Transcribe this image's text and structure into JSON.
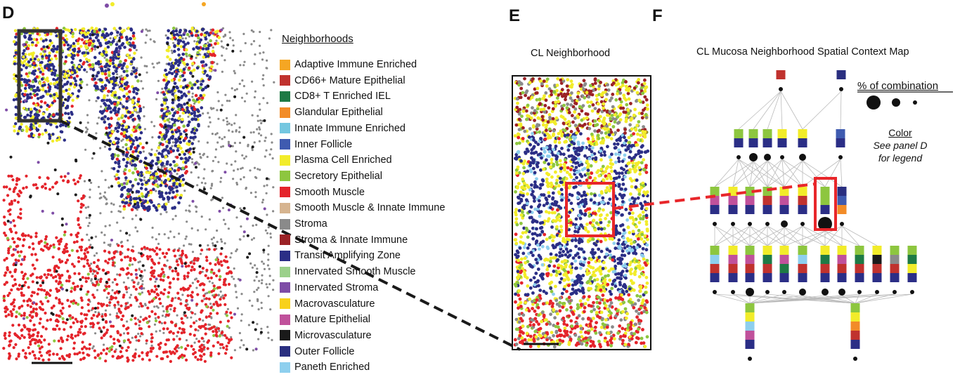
{
  "panels": {
    "d": "D",
    "e": "E",
    "f": "F"
  },
  "legend": {
    "title": "Neighborhoods",
    "items": [
      {
        "label": "Adaptive Immune Enriched",
        "color": "#f5a623"
      },
      {
        "label": "CD66+ Mature Epithelial",
        "color": "#c0322e"
      },
      {
        "label": "CD8+ T Enriched IEL",
        "color": "#1e7a45"
      },
      {
        "label": "Glandular Epithelial",
        "color": "#f28c28"
      },
      {
        "label": "Innate Immune Enriched",
        "color": "#74c7e0"
      },
      {
        "label": "Inner Follicle",
        "color": "#3f5bb0"
      },
      {
        "label": "Plasma Cell Enriched",
        "color": "#f2ec2a"
      },
      {
        "label": "Secretory Epithelial",
        "color": "#8dc63f"
      },
      {
        "label": "Smooth Muscle",
        "color": "#e4242b"
      },
      {
        "label": "Smooth Muscle & Innate Immune",
        "color": "#d6b48f"
      },
      {
        "label": "Stroma",
        "color": "#8a8a8a"
      },
      {
        "label": "Stroma & Innate Immune",
        "color": "#9b2226"
      },
      {
        "label": "Transit Amplifying Zone",
        "color": "#2b2e86"
      },
      {
        "label": "Innervated Smooth Muscle",
        "color": "#9bd08a"
      },
      {
        "label": "Innervated Stroma",
        "color": "#7e4ca6"
      },
      {
        "label": "Macrovasculature",
        "color": "#f8d11c"
      },
      {
        "label": "Mature Epithelial",
        "color": "#c0519b"
      },
      {
        "label": "Microvasculature",
        "color": "#1a1a1a"
      },
      {
        "label": "Outer Follicle",
        "color": "#2a2f80"
      },
      {
        "label": "Paneth Enriched",
        "color": "#8ecfee"
      }
    ]
  },
  "panel_e": {
    "title": "CL Neighborhood"
  },
  "panel_f": {
    "title": "CL Mucosa Neighborhood Spatial Context Map",
    "size_legend_title": "% of combination",
    "color_title": "Color",
    "color_note_1": "See panel D",
    "color_note_2": "for legend"
  },
  "colors": {
    "highlight": "#e8262a",
    "zoom_box": "#333333",
    "edge": "#bbbbbb"
  }
}
